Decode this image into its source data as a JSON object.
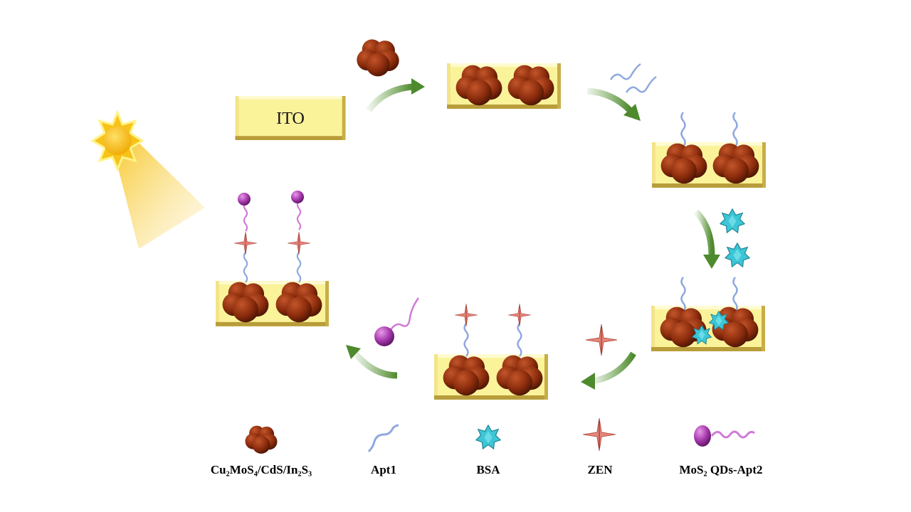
{
  "electrode_label": "ITO",
  "legend": [
    {
      "icon": "nanocluster-icon",
      "label": "Cu₂MoS₄/CdS/In₂S₃"
    },
    {
      "icon": "aptamer-icon",
      "label": "Apt1"
    },
    {
      "icon": "bsa-star-icon",
      "label": "BSA"
    },
    {
      "icon": "zen-star-icon",
      "label": "ZEN"
    },
    {
      "icon": "mos2-qd-aptamer-icon",
      "label": "MoS₂ QDs-Apt2"
    }
  ],
  "colors": {
    "plate": "#fbf39a",
    "cluster": "#8b2c0c",
    "aptamer": "#8fa8de",
    "bsa": "#3cc6d6",
    "zen": "#e8857a",
    "mos2": "#a83bb0",
    "arrow": "#5c9a3a",
    "sun": "#f7c31a"
  }
}
